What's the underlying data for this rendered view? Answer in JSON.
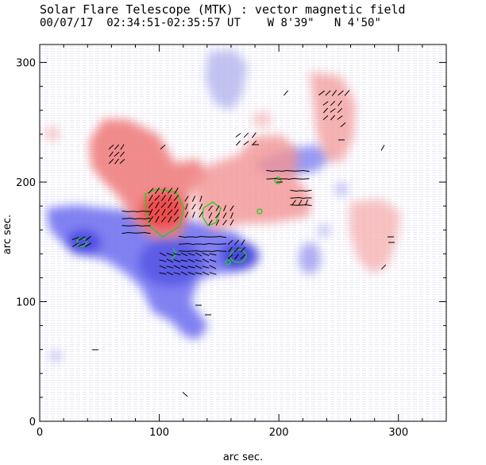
{
  "header": {
    "title": "Solar Flare Telescope (MTK) : vector magnetic field",
    "date": "00/07/17",
    "time_range": "02:34:51-02:35:57 UT",
    "longitude": "W 8'39\"",
    "latitude": "N 4'50\""
  },
  "plot": {
    "xlabel": "arc sec.",
    "ylabel": "arc sec.",
    "xlim": [
      0,
      340
    ],
    "ylim": [
      0,
      315
    ],
    "x_ticks": [
      0,
      100,
      200,
      300
    ],
    "y_ticks": [
      0,
      100,
      200,
      300
    ],
    "colors": {
      "positive_polarity": "#f08080",
      "negative_polarity": "#6b6bf0",
      "transverse_vectors": "#000000",
      "contours": "#22cc22",
      "axes": "#000000"
    }
  }
}
